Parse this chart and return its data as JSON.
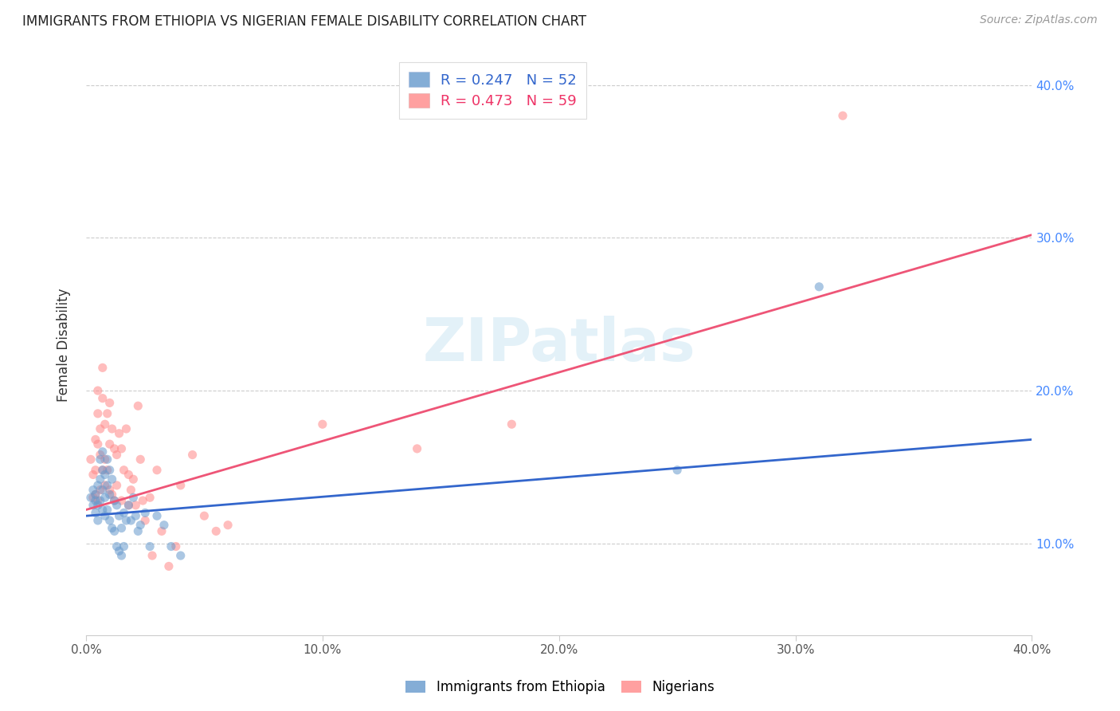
{
  "title": "IMMIGRANTS FROM ETHIOPIA VS NIGERIAN FEMALE DISABILITY CORRELATION CHART",
  "source": "Source: ZipAtlas.com",
  "ylabel": "Female Disability",
  "xlim": [
    0.0,
    0.4
  ],
  "ylim": [
    0.04,
    0.42
  ],
  "yticks": [
    0.1,
    0.2,
    0.3,
    0.4
  ],
  "xticks": [
    0.0,
    0.1,
    0.2,
    0.3,
    0.4
  ],
  "xtick_labels": [
    "0.0%",
    "10.0%",
    "20.0%",
    "30.0%",
    "40.0%"
  ],
  "right_ytick_labels": [
    "10.0%",
    "20.0%",
    "30.0%",
    "40.0%"
  ],
  "blue_color": "#6699CC",
  "pink_color": "#FF8888",
  "blue_line_color": "#3366CC",
  "pink_line_color": "#EE5577",
  "legend_blue_label": "R = 0.247   N = 52",
  "legend_pink_label": "R = 0.473   N = 59",
  "watermark": "ZIPatlas",
  "scatter_alpha": 0.55,
  "marker_size": 65,
  "blue_scatter_x": [
    0.002,
    0.003,
    0.003,
    0.004,
    0.004,
    0.004,
    0.005,
    0.005,
    0.005,
    0.006,
    0.006,
    0.006,
    0.007,
    0.007,
    0.007,
    0.007,
    0.008,
    0.008,
    0.008,
    0.009,
    0.009,
    0.009,
    0.01,
    0.01,
    0.01,
    0.011,
    0.011,
    0.012,
    0.012,
    0.013,
    0.013,
    0.014,
    0.014,
    0.015,
    0.015,
    0.016,
    0.016,
    0.017,
    0.018,
    0.019,
    0.02,
    0.021,
    0.022,
    0.023,
    0.025,
    0.027,
    0.03,
    0.033,
    0.036,
    0.04,
    0.25,
    0.31
  ],
  "blue_scatter_y": [
    0.13,
    0.135,
    0.125,
    0.128,
    0.12,
    0.132,
    0.138,
    0.125,
    0.115,
    0.155,
    0.142,
    0.128,
    0.16,
    0.148,
    0.135,
    0.122,
    0.145,
    0.13,
    0.118,
    0.155,
    0.138,
    0.122,
    0.148,
    0.132,
    0.115,
    0.142,
    0.11,
    0.128,
    0.108,
    0.125,
    0.098,
    0.118,
    0.095,
    0.11,
    0.092,
    0.12,
    0.098,
    0.115,
    0.125,
    0.115,
    0.13,
    0.118,
    0.108,
    0.112,
    0.12,
    0.098,
    0.118,
    0.112,
    0.098,
    0.092,
    0.148,
    0.268
  ],
  "pink_scatter_x": [
    0.002,
    0.003,
    0.003,
    0.004,
    0.004,
    0.004,
    0.005,
    0.005,
    0.005,
    0.005,
    0.006,
    0.006,
    0.006,
    0.007,
    0.007,
    0.007,
    0.008,
    0.008,
    0.008,
    0.009,
    0.009,
    0.01,
    0.01,
    0.01,
    0.011,
    0.011,
    0.012,
    0.012,
    0.013,
    0.013,
    0.014,
    0.015,
    0.015,
    0.016,
    0.017,
    0.018,
    0.018,
    0.019,
    0.02,
    0.021,
    0.022,
    0.023,
    0.024,
    0.025,
    0.027,
    0.028,
    0.03,
    0.032,
    0.035,
    0.038,
    0.04,
    0.045,
    0.05,
    0.055,
    0.06,
    0.1,
    0.14,
    0.18,
    0.32
  ],
  "pink_scatter_y": [
    0.155,
    0.145,
    0.13,
    0.168,
    0.148,
    0.132,
    0.2,
    0.185,
    0.165,
    0.128,
    0.175,
    0.158,
    0.135,
    0.215,
    0.195,
    0.148,
    0.178,
    0.155,
    0.138,
    0.185,
    0.148,
    0.192,
    0.165,
    0.135,
    0.175,
    0.132,
    0.162,
    0.128,
    0.158,
    0.138,
    0.172,
    0.162,
    0.128,
    0.148,
    0.175,
    0.145,
    0.125,
    0.135,
    0.142,
    0.125,
    0.19,
    0.155,
    0.128,
    0.115,
    0.13,
    0.092,
    0.148,
    0.108,
    0.085,
    0.098,
    0.138,
    0.158,
    0.118,
    0.108,
    0.112,
    0.178,
    0.162,
    0.178,
    0.38
  ],
  "blue_line_x": [
    0.0,
    0.4
  ],
  "blue_line_y": [
    0.118,
    0.168
  ],
  "pink_line_x": [
    0.0,
    0.4
  ],
  "pink_line_y": [
    0.122,
    0.302
  ],
  "bottom_legend_labels": [
    "Immigrants from Ethiopia",
    "Nigerians"
  ]
}
